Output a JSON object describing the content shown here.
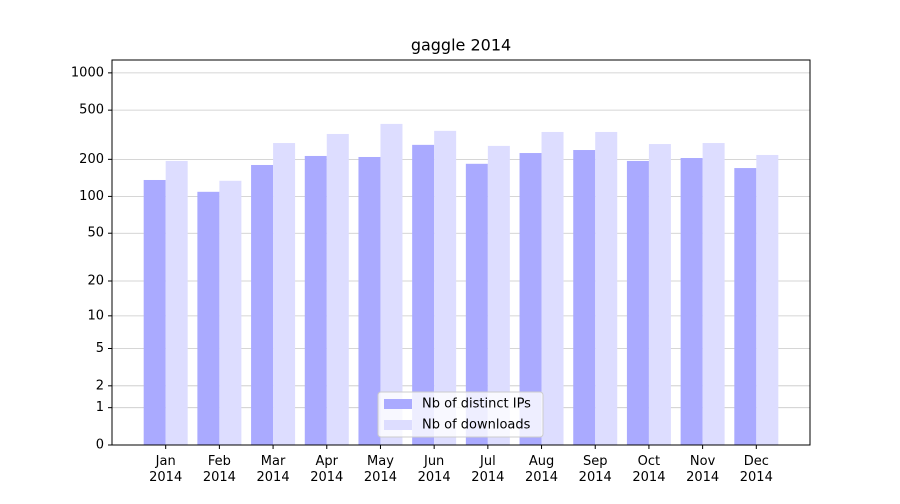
{
  "chart_data": {
    "type": "bar",
    "title": "gaggle 2014",
    "categories": [
      "Jan 2014",
      "Feb 2014",
      "Mar 2014",
      "Apr 2014",
      "May 2014",
      "Jun 2014",
      "Jul 2014",
      "Aug 2014",
      "Sep 2014",
      "Oct 2014",
      "Nov 2014",
      "Dec 2014"
    ],
    "series": [
      {
        "name": "Nb of distinct IPs",
        "color": "#aaaaff",
        "values": [
          136,
          109,
          180,
          213,
          209,
          262,
          184,
          225,
          238,
          194,
          205,
          170
        ]
      },
      {
        "name": "Nb of downloads",
        "color": "#ddddff",
        "values": [
          194,
          134,
          271,
          321,
          387,
          340,
          257,
          333,
          333,
          266,
          271,
          217
        ]
      }
    ],
    "yscale": "log1p",
    "ylim": [
      0,
      1270
    ],
    "yticks": [
      0,
      1,
      2,
      5,
      10,
      20,
      50,
      100,
      200,
      500,
      1000
    ],
    "grid": true,
    "legend": "bottom"
  }
}
